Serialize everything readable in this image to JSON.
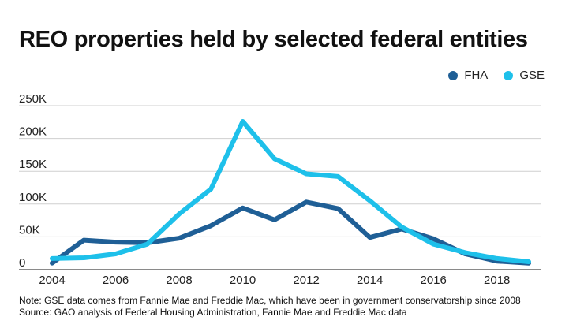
{
  "title": "REO properties held by selected federal entities",
  "legend": [
    {
      "label": "FHA",
      "color": "#1f5f96"
    },
    {
      "label": "GSE",
      "color": "#1ec0ea"
    }
  ],
  "chart_data": {
    "type": "line",
    "title": "REO properties held by selected federal entities",
    "xlabel": "",
    "ylabel": "",
    "x": [
      2004,
      2005,
      2006,
      2007,
      2008,
      2009,
      2010,
      2011,
      2012,
      2013,
      2014,
      2015,
      2016,
      2017,
      2018,
      2019
    ],
    "series": [
      {
        "name": "FHA",
        "color": "#1f5f96",
        "values": [
          10000,
          45000,
          42000,
          41000,
          48000,
          67000,
          94000,
          76000,
          103000,
          93000,
          49000,
          62000,
          47000,
          24000,
          13000,
          10000
        ]
      },
      {
        "name": "GSE",
        "color": "#1ec0ea",
        "values": [
          17000,
          18000,
          24000,
          39000,
          85000,
          123000,
          226000,
          169000,
          146000,
          142000,
          105000,
          65000,
          39000,
          26000,
          17000,
          12000
        ]
      }
    ],
    "xlim": [
      2004,
      2019
    ],
    "ylim": [
      0,
      250000
    ],
    "x_ticks": [
      2004,
      2006,
      2008,
      2010,
      2012,
      2014,
      2016,
      2018
    ],
    "x_tick_labels": [
      "2004",
      "2006",
      "2008",
      "2010",
      "2012",
      "2014",
      "2016",
      "2018"
    ],
    "y_ticks": [
      0,
      50000,
      100000,
      150000,
      200000,
      250000
    ],
    "y_tick_labels": [
      "0",
      "50K",
      "100K",
      "150K",
      "200K",
      "250K"
    ],
    "grid": true,
    "legend_position": "top-right"
  },
  "notes": {
    "note": "Note: GSE data comes from Fannie Mae and Freddie Mac, which have been in government conservatorship since 2008",
    "source": "Source: GAO analysis of Federal Housing Administration, Fannie Mae and Freddie Mac data"
  }
}
